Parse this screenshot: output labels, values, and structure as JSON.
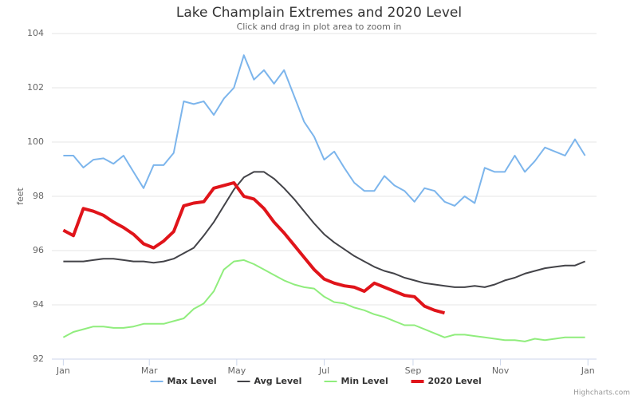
{
  "chart_data": {
    "type": "line",
    "title": "Lake Champlain Extremes and 2020 Level",
    "subtitle": "Click and drag in plot area to zoom in",
    "y_label": "feet",
    "credits": "Highcharts.com",
    "grid": true,
    "legend": "bottom",
    "x": [
      0,
      7,
      14,
      21,
      28,
      35,
      42,
      49,
      56,
      63,
      70,
      77,
      84,
      91,
      98,
      105,
      112,
      119,
      126,
      133,
      140,
      147,
      154,
      161,
      168,
      175,
      182,
      189,
      196,
      203,
      210,
      217,
      224,
      231,
      238,
      245,
      252,
      259,
      266,
      273,
      280,
      287,
      294,
      301,
      308,
      315,
      322,
      329,
      336,
      343,
      350,
      357,
      364
    ],
    "xlim": [
      -8,
      372
    ],
    "xticks": [
      {
        "value": 0,
        "label": "Jan"
      },
      {
        "value": 60,
        "label": "Mar"
      },
      {
        "value": 121,
        "label": "May"
      },
      {
        "value": 182,
        "label": "Jul"
      },
      {
        "value": 244,
        "label": "Sep"
      },
      {
        "value": 305,
        "label": "Nov"
      },
      {
        "value": 366,
        "label": "Jan"
      }
    ],
    "ylim": [
      92,
      104
    ],
    "yticks": [
      92,
      94,
      96,
      98,
      100,
      102,
      104
    ],
    "series": [
      {
        "name": "Max Level",
        "color": "#7cb5ec",
        "width": 2,
        "values": [
          99.5,
          99.5,
          99.06,
          99.35,
          99.4,
          99.2,
          99.5,
          98.9,
          98.3,
          99.15,
          99.15,
          99.6,
          101.5,
          101.4,
          101.5,
          101.0,
          101.6,
          102.0,
          103.2,
          102.3,
          102.65,
          102.15,
          102.65,
          101.7,
          100.75,
          100.2,
          99.35,
          99.65,
          99.05,
          98.5,
          98.2,
          98.2,
          98.75,
          98.4,
          98.2,
          97.8,
          98.3,
          98.2,
          97.8,
          97.65,
          98.0,
          97.75,
          99.05,
          98.9,
          98.9,
          99.5,
          98.9,
          99.3,
          99.8,
          99.65,
          99.5,
          100.1,
          99.5
        ]
      },
      {
        "name": "Avg Level",
        "color": "#434348",
        "width": 2,
        "values": [
          95.6,
          95.6,
          95.6,
          95.65,
          95.7,
          95.7,
          95.65,
          95.6,
          95.6,
          95.55,
          95.6,
          95.7,
          95.9,
          96.1,
          96.55,
          97.05,
          97.65,
          98.25,
          98.7,
          98.9,
          98.9,
          98.65,
          98.3,
          97.9,
          97.45,
          97.0,
          96.6,
          96.3,
          96.05,
          95.8,
          95.6,
          95.4,
          95.25,
          95.15,
          95.0,
          94.9,
          94.8,
          94.75,
          94.7,
          94.65,
          94.65,
          94.7,
          94.65,
          94.75,
          94.9,
          95.0,
          95.15,
          95.25,
          95.35,
          95.4,
          95.45,
          95.45,
          95.6
        ]
      },
      {
        "name": "Min Level",
        "color": "#90ed7d",
        "width": 2,
        "values": [
          92.8,
          93.0,
          93.1,
          93.2,
          93.2,
          93.15,
          93.15,
          93.2,
          93.3,
          93.3,
          93.3,
          93.4,
          93.5,
          93.85,
          94.05,
          94.5,
          95.3,
          95.6,
          95.65,
          95.5,
          95.3,
          95.1,
          94.9,
          94.75,
          94.65,
          94.6,
          94.3,
          94.1,
          94.05,
          93.9,
          93.8,
          93.65,
          93.55,
          93.4,
          93.25,
          93.25,
          93.1,
          92.95,
          92.8,
          92.9,
          92.9,
          92.85,
          92.8,
          92.75,
          92.7,
          92.7,
          92.65,
          92.75,
          92.7,
          92.75,
          92.8,
          92.8,
          92.8
        ]
      },
      {
        "name": "2020 Level",
        "color": "#e0141a",
        "width": 4,
        "values": [
          96.75,
          96.55,
          97.55,
          97.45,
          97.3,
          97.05,
          96.85,
          96.6,
          96.25,
          96.1,
          96.35,
          96.7,
          97.65,
          97.75,
          97.8,
          98.3,
          98.4,
          98.5,
          98.0,
          97.9,
          97.55,
          97.05,
          96.65,
          96.2,
          95.75,
          95.3,
          94.95,
          94.8,
          94.7,
          94.65,
          94.5,
          94.8,
          94.65,
          94.5,
          94.35,
          94.3,
          93.95,
          93.8,
          93.7,
          null,
          null,
          null,
          null,
          null,
          null,
          null,
          null,
          null,
          null,
          null,
          null,
          null,
          null
        ]
      }
    ]
  }
}
